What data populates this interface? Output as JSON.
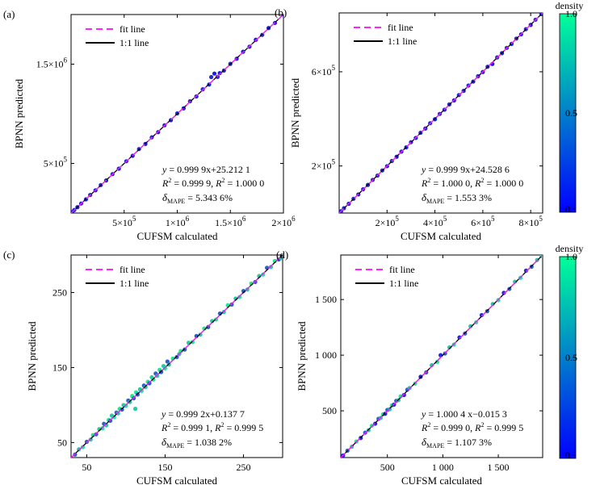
{
  "chart_data": [
    {
      "panel_label": "(a)",
      "type": "scatter",
      "xlabel": "CUFSM calculated",
      "ylabel": "BPNN predicted",
      "xlim": [
        0,
        2000000
      ],
      "ylim": [
        0,
        2000000
      ],
      "x_ticks": [
        {
          "v": 500000,
          "m": "5",
          "e": "5"
        },
        {
          "v": 1000000,
          "m": "1",
          "e": "6"
        },
        {
          "v": 1500000,
          "m": "1.5",
          "e": "6"
        },
        {
          "v": 2000000,
          "m": "2",
          "e": "6"
        }
      ],
      "y_ticks": [
        {
          "v": 500000,
          "m": "5",
          "e": "5"
        },
        {
          "v": 1500000,
          "m": "1.5",
          "e": "6"
        }
      ],
      "legend": [
        "fit line",
        "1:1 line"
      ],
      "equation": {
        "lead": "y",
        "rhs": "= 0.999 9x+25.212 1",
        "r2a": "= 0.999 9, ",
        "r2b": "= 1.000 0",
        "sub": "MAPE",
        "mape": "= 5.343 6%"
      },
      "density_colors": [
        "#0a14e6",
        "#1b1fd8"
      ],
      "points": [
        [
          10000,
          9800
        ],
        [
          30000,
          30500
        ],
        [
          60000,
          59000
        ],
        [
          95000,
          96000
        ],
        [
          140000,
          138000
        ],
        [
          180000,
          182000
        ],
        [
          230000,
          229000
        ],
        [
          280000,
          282000
        ],
        [
          330000,
          328000
        ],
        [
          390000,
          392000
        ],
        [
          450000,
          447000
        ],
        [
          520000,
          522000
        ],
        [
          580000,
          577000
        ],
        [
          640000,
          645000
        ],
        [
          700000,
          696000
        ],
        [
          760000,
          763000
        ],
        [
          820000,
          815000
        ],
        [
          880000,
          884000
        ],
        [
          940000,
          936000
        ],
        [
          1000000,
          1004000
        ],
        [
          1060000,
          1055000
        ],
        [
          1120000,
          1126000
        ],
        [
          1180000,
          1175000
        ],
        [
          1240000,
          1247000
        ],
        [
          1300000,
          1295000
        ],
        [
          1320000,
          1370000
        ],
        [
          1350000,
          1405000
        ],
        [
          1380000,
          1372000
        ],
        [
          1400000,
          1410000
        ],
        [
          1440000,
          1436000
        ],
        [
          1500000,
          1503000
        ],
        [
          1560000,
          1555000
        ],
        [
          1620000,
          1625000
        ],
        [
          1680000,
          1676000
        ],
        [
          1740000,
          1746000
        ],
        [
          1800000,
          1795000
        ],
        [
          1860000,
          1864000
        ],
        [
          1920000,
          1915000
        ],
        [
          2000000,
          2000000
        ]
      ]
    },
    {
      "panel_label": "(b)",
      "type": "scatter",
      "xlabel": "CUFSM calculated",
      "ylabel": "BPNN predicted",
      "xlim": [
        0,
        850000
      ],
      "ylim": [
        0,
        850000
      ],
      "x_ticks": [
        {
          "v": 200000,
          "m": "2",
          "e": "5"
        },
        {
          "v": 400000,
          "m": "4",
          "e": "5"
        },
        {
          "v": 600000,
          "m": "6",
          "e": "5"
        },
        {
          "v": 800000,
          "m": "8",
          "e": "5"
        }
      ],
      "y_ticks": [
        {
          "v": 200000,
          "m": "2",
          "e": "5"
        },
        {
          "v": 600000,
          "m": "6",
          "e": "5"
        }
      ],
      "legend": [
        "fit line",
        "1:1 line"
      ],
      "equation": {
        "lead": "y",
        "rhs": "= 0.999 9x+24.528 6",
        "r2a": "= 1.000 0, ",
        "r2b": "= 1.000 0",
        "sub": "MAPE",
        "mape": "= 1.553 3%"
      },
      "density_colors": [
        "#0a14e6",
        "#1b1fd8"
      ],
      "points": [
        [
          8000,
          8000
        ],
        [
          20000,
          20500
        ],
        [
          40000,
          39500
        ],
        [
          60000,
          60500
        ],
        [
          80000,
          79000
        ],
        [
          100000,
          101000
        ],
        [
          120000,
          119500
        ],
        [
          140000,
          140800
        ],
        [
          160000,
          159200
        ],
        [
          180000,
          181000
        ],
        [
          200000,
          199000
        ],
        [
          220000,
          221000
        ],
        [
          240000,
          239000
        ],
        [
          260000,
          261000
        ],
        [
          280000,
          279000
        ],
        [
          300000,
          301000
        ],
        [
          320000,
          319000
        ],
        [
          340000,
          341000
        ],
        [
          360000,
          359000
        ],
        [
          380000,
          381500
        ],
        [
          400000,
          398500
        ],
        [
          420000,
          421000
        ],
        [
          440000,
          439000
        ],
        [
          460000,
          461500
        ],
        [
          480000,
          478500
        ],
        [
          500000,
          501000
        ],
        [
          520000,
          519000
        ],
        [
          540000,
          541500
        ],
        [
          560000,
          558500
        ],
        [
          580000,
          581000
        ],
        [
          600000,
          599000
        ],
        [
          620000,
          621500
        ],
        [
          640000,
          633000
        ],
        [
          660000,
          661000
        ],
        [
          680000,
          679000
        ],
        [
          700000,
          701500
        ],
        [
          720000,
          718500
        ],
        [
          740000,
          741000
        ],
        [
          760000,
          759000
        ],
        [
          780000,
          781000
        ],
        [
          800000,
          799000
        ],
        [
          820000,
          821000
        ],
        [
          845000,
          845000
        ]
      ]
    },
    {
      "panel_label": "(c)",
      "type": "scatter",
      "xlabel": "CUFSM calculated",
      "ylabel": "BPNN predicted",
      "xlim": [
        30,
        300
      ],
      "ylim": [
        30,
        300
      ],
      "x_ticks": [
        {
          "v": 50,
          "t": "50"
        },
        {
          "v": 150,
          "t": "150"
        },
        {
          "v": 250,
          "t": "250"
        }
      ],
      "y_ticks": [
        {
          "v": 50,
          "t": "50"
        },
        {
          "v": 150,
          "t": "150"
        },
        {
          "v": 250,
          "t": "250"
        }
      ],
      "legend": [
        "fit line",
        "1:1 line"
      ],
      "equation": {
        "lead": "y",
        "rhs": "= 0.999 2x+0.137 7",
        "r2a": "= 0.999 1, ",
        "r2b": "= 0.999 5",
        "sub": "MAPE",
        "mape": "= 1.038 2%"
      },
      "density_colors": [
        "#1f58c8",
        "#19c7a0",
        "#10e890"
      ],
      "points": [
        [
          35,
          34
        ],
        [
          40,
          41
        ],
        [
          45,
          44
        ],
        [
          50,
          51
        ],
        [
          55,
          54
        ],
        [
          58,
          60
        ],
        [
          62,
          61
        ],
        [
          66,
          68
        ],
        [
          70,
          69
        ],
        [
          72,
          75
        ],
        [
          75,
          73
        ],
        [
          78,
          80
        ],
        [
          80,
          79
        ],
        [
          82,
          86
        ],
        [
          85,
          84
        ],
        [
          88,
          90
        ],
        [
          90,
          89
        ],
        [
          92,
          95
        ],
        [
          95,
          94
        ],
        [
          97,
          100
        ],
        [
          100,
          99
        ],
        [
          103,
          106
        ],
        [
          105,
          104
        ],
        [
          108,
          112
        ],
        [
          110,
          109
        ],
        [
          112,
          95
        ],
        [
          113,
          117
        ],
        [
          115,
          114
        ],
        [
          118,
          121
        ],
        [
          120,
          119
        ],
        [
          123,
          126
        ],
        [
          125,
          124
        ],
        [
          128,
          131
        ],
        [
          130,
          129
        ],
        [
          133,
          137
        ],
        [
          135,
          134
        ],
        [
          138,
          142
        ],
        [
          140,
          139
        ],
        [
          143,
          147
        ],
        [
          145,
          144
        ],
        [
          148,
          152
        ],
        [
          150,
          149
        ],
        [
          153,
          158
        ],
        [
          155,
          154
        ],
        [
          160,
          162
        ],
        [
          165,
          164
        ],
        [
          168,
          168
        ],
        [
          170,
          172
        ],
        [
          175,
          174
        ],
        [
          180,
          183
        ],
        [
          185,
          184
        ],
        [
          190,
          192
        ],
        [
          195,
          194
        ],
        [
          200,
          202
        ],
        [
          205,
          204
        ],
        [
          210,
          212
        ],
        [
          215,
          214
        ],
        [
          220,
          222
        ],
        [
          225,
          224
        ],
        [
          230,
          233
        ],
        [
          235,
          234
        ],
        [
          240,
          242
        ],
        [
          245,
          244
        ],
        [
          250,
          252
        ],
        [
          255,
          254
        ],
        [
          260,
          262
        ],
        [
          265,
          264
        ],
        [
          270,
          272
        ],
        [
          275,
          274
        ],
        [
          280,
          283
        ],
        [
          285,
          284
        ],
        [
          290,
          292
        ],
        [
          295,
          294
        ],
        [
          298,
          296
        ]
      ]
    },
    {
      "panel_label": "(d)",
      "type": "scatter",
      "xlabel": "CUFSM calculated",
      "ylabel": "BPNN predicted",
      "xlim": [
        80,
        1900
      ],
      "ylim": [
        80,
        1900
      ],
      "x_ticks": [
        {
          "v": 500,
          "t": "500"
        },
        {
          "v": 1000,
          "t": "1 000"
        },
        {
          "v": 1500,
          "t": "1 500"
        }
      ],
      "y_ticks": [
        {
          "v": 500,
          "t": "500"
        },
        {
          "v": 1000,
          "t": "1 000"
        },
        {
          "v": 1500,
          "t": "1 500"
        }
      ],
      "legend": [
        "fit line",
        "1:1 line"
      ],
      "equation": {
        "lead": "y",
        "rhs": "= 1.000 4 x−0.015 3",
        "r2a": "= 0.999 0, ",
        "r2b": "= 0.999 5",
        "sub": "MAPE",
        "mape": "= 1.107 3%"
      },
      "density_colors": [
        "#1a1ee0",
        "#1f58c8",
        "#19c7a0",
        "#10e890"
      ],
      "points": [
        [
          100,
          98
        ],
        [
          140,
          142
        ],
        [
          180,
          178
        ],
        [
          220,
          224
        ],
        [
          260,
          256
        ],
        [
          300,
          304
        ],
        [
          330,
          326
        ],
        [
          360,
          366
        ],
        [
          390,
          384
        ],
        [
          420,
          428
        ],
        [
          440,
          436
        ],
        [
          460,
          468
        ],
        [
          480,
          474
        ],
        [
          500,
          508
        ],
        [
          520,
          514
        ],
        [
          540,
          548
        ],
        [
          560,
          556
        ],
        [
          580,
          590
        ],
        [
          600,
          596
        ],
        [
          620,
          630
        ],
        [
          650,
          642
        ],
        [
          680,
          690
        ],
        [
          700,
          705
        ],
        [
          750,
          745
        ],
        [
          800,
          806
        ],
        [
          850,
          845
        ],
        [
          900,
          910
        ],
        [
          950,
          940
        ],
        [
          980,
          1000
        ],
        [
          1020,
          1015
        ],
        [
          1060,
          1070
        ],
        [
          1100,
          1095
        ],
        [
          1150,
          1160
        ],
        [
          1200,
          1195
        ],
        [
          1250,
          1260
        ],
        [
          1300,
          1295
        ],
        [
          1350,
          1360
        ],
        [
          1400,
          1395
        ],
        [
          1450,
          1460
        ],
        [
          1500,
          1495
        ],
        [
          1550,
          1560
        ],
        [
          1600,
          1595
        ],
        [
          1650,
          1660
        ],
        [
          1700,
          1695
        ],
        [
          1750,
          1760
        ],
        [
          1800,
          1795
        ],
        [
          1850,
          1855
        ],
        [
          1890,
          1890
        ]
      ]
    }
  ],
  "colorbars": [
    {
      "label": "density",
      "ticks": [
        "1.0",
        "0.5",
        "0"
      ],
      "stops": [
        "#0000ff",
        "#00ff99"
      ]
    },
    {
      "label": "density",
      "ticks": [
        "1.0",
        "0.5",
        "0"
      ],
      "stops": [
        "#0000ff",
        "#00ff99"
      ]
    }
  ],
  "colors": {
    "fit_line": "#ff22ff",
    "one_to_one": "#000000",
    "axis": "#000000"
  }
}
